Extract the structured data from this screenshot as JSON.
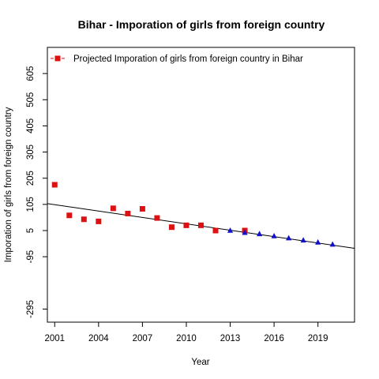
{
  "chart_data": {
    "type": "scatter",
    "title": "Bihar  -  Imporation of girls from foreign country",
    "xlabel": "Year",
    "ylabel": "Imporation of girls from foreign country",
    "xlim": [
      2000.5,
      2021.5
    ],
    "ylim": [
      -345,
      705
    ],
    "x_ticks": [
      "2001",
      "2004",
      "2007",
      "2010",
      "2013",
      "2016",
      "2019"
    ],
    "x_tick_values": [
      2001,
      2004,
      2007,
      2010,
      2013,
      2016,
      2019
    ],
    "y_ticks": [
      "605",
      "505",
      "405",
      "305",
      "205",
      "105",
      "5",
      "-95",
      "-295"
    ],
    "y_tick_values": [
      605,
      505,
      405,
      305,
      205,
      105,
      5,
      -95,
      -295
    ],
    "legend": {
      "position": "top-left",
      "label": "Projected  Imporation of girls from foreign country  in  Bihar"
    },
    "grid": false,
    "series": [
      {
        "name": "Projected  Imporation of girls from foreign country  in  Bihar",
        "marker": "square",
        "color": "#dd1111",
        "x": [
          2001,
          2002,
          2003,
          2004,
          2005,
          2006,
          2007,
          2008,
          2009,
          2010,
          2011,
          2012,
          2014
        ],
        "y": [
          180,
          63,
          48,
          40,
          90,
          70,
          88,
          53,
          18,
          25,
          25,
          5,
          5
        ]
      },
      {
        "marker": "triangle",
        "color": "#1111cc",
        "x": [
          2013,
          2014,
          2015,
          2016,
          2017,
          2018,
          2019,
          2020
        ],
        "y": [
          5,
          -3,
          -8,
          -16,
          -24,
          -32,
          -40,
          -48
        ]
      }
    ],
    "trend_line": {
      "color": "#000000",
      "x": [
        2000.5,
        2021.5
      ],
      "y": [
        108,
        -63
      ]
    }
  }
}
